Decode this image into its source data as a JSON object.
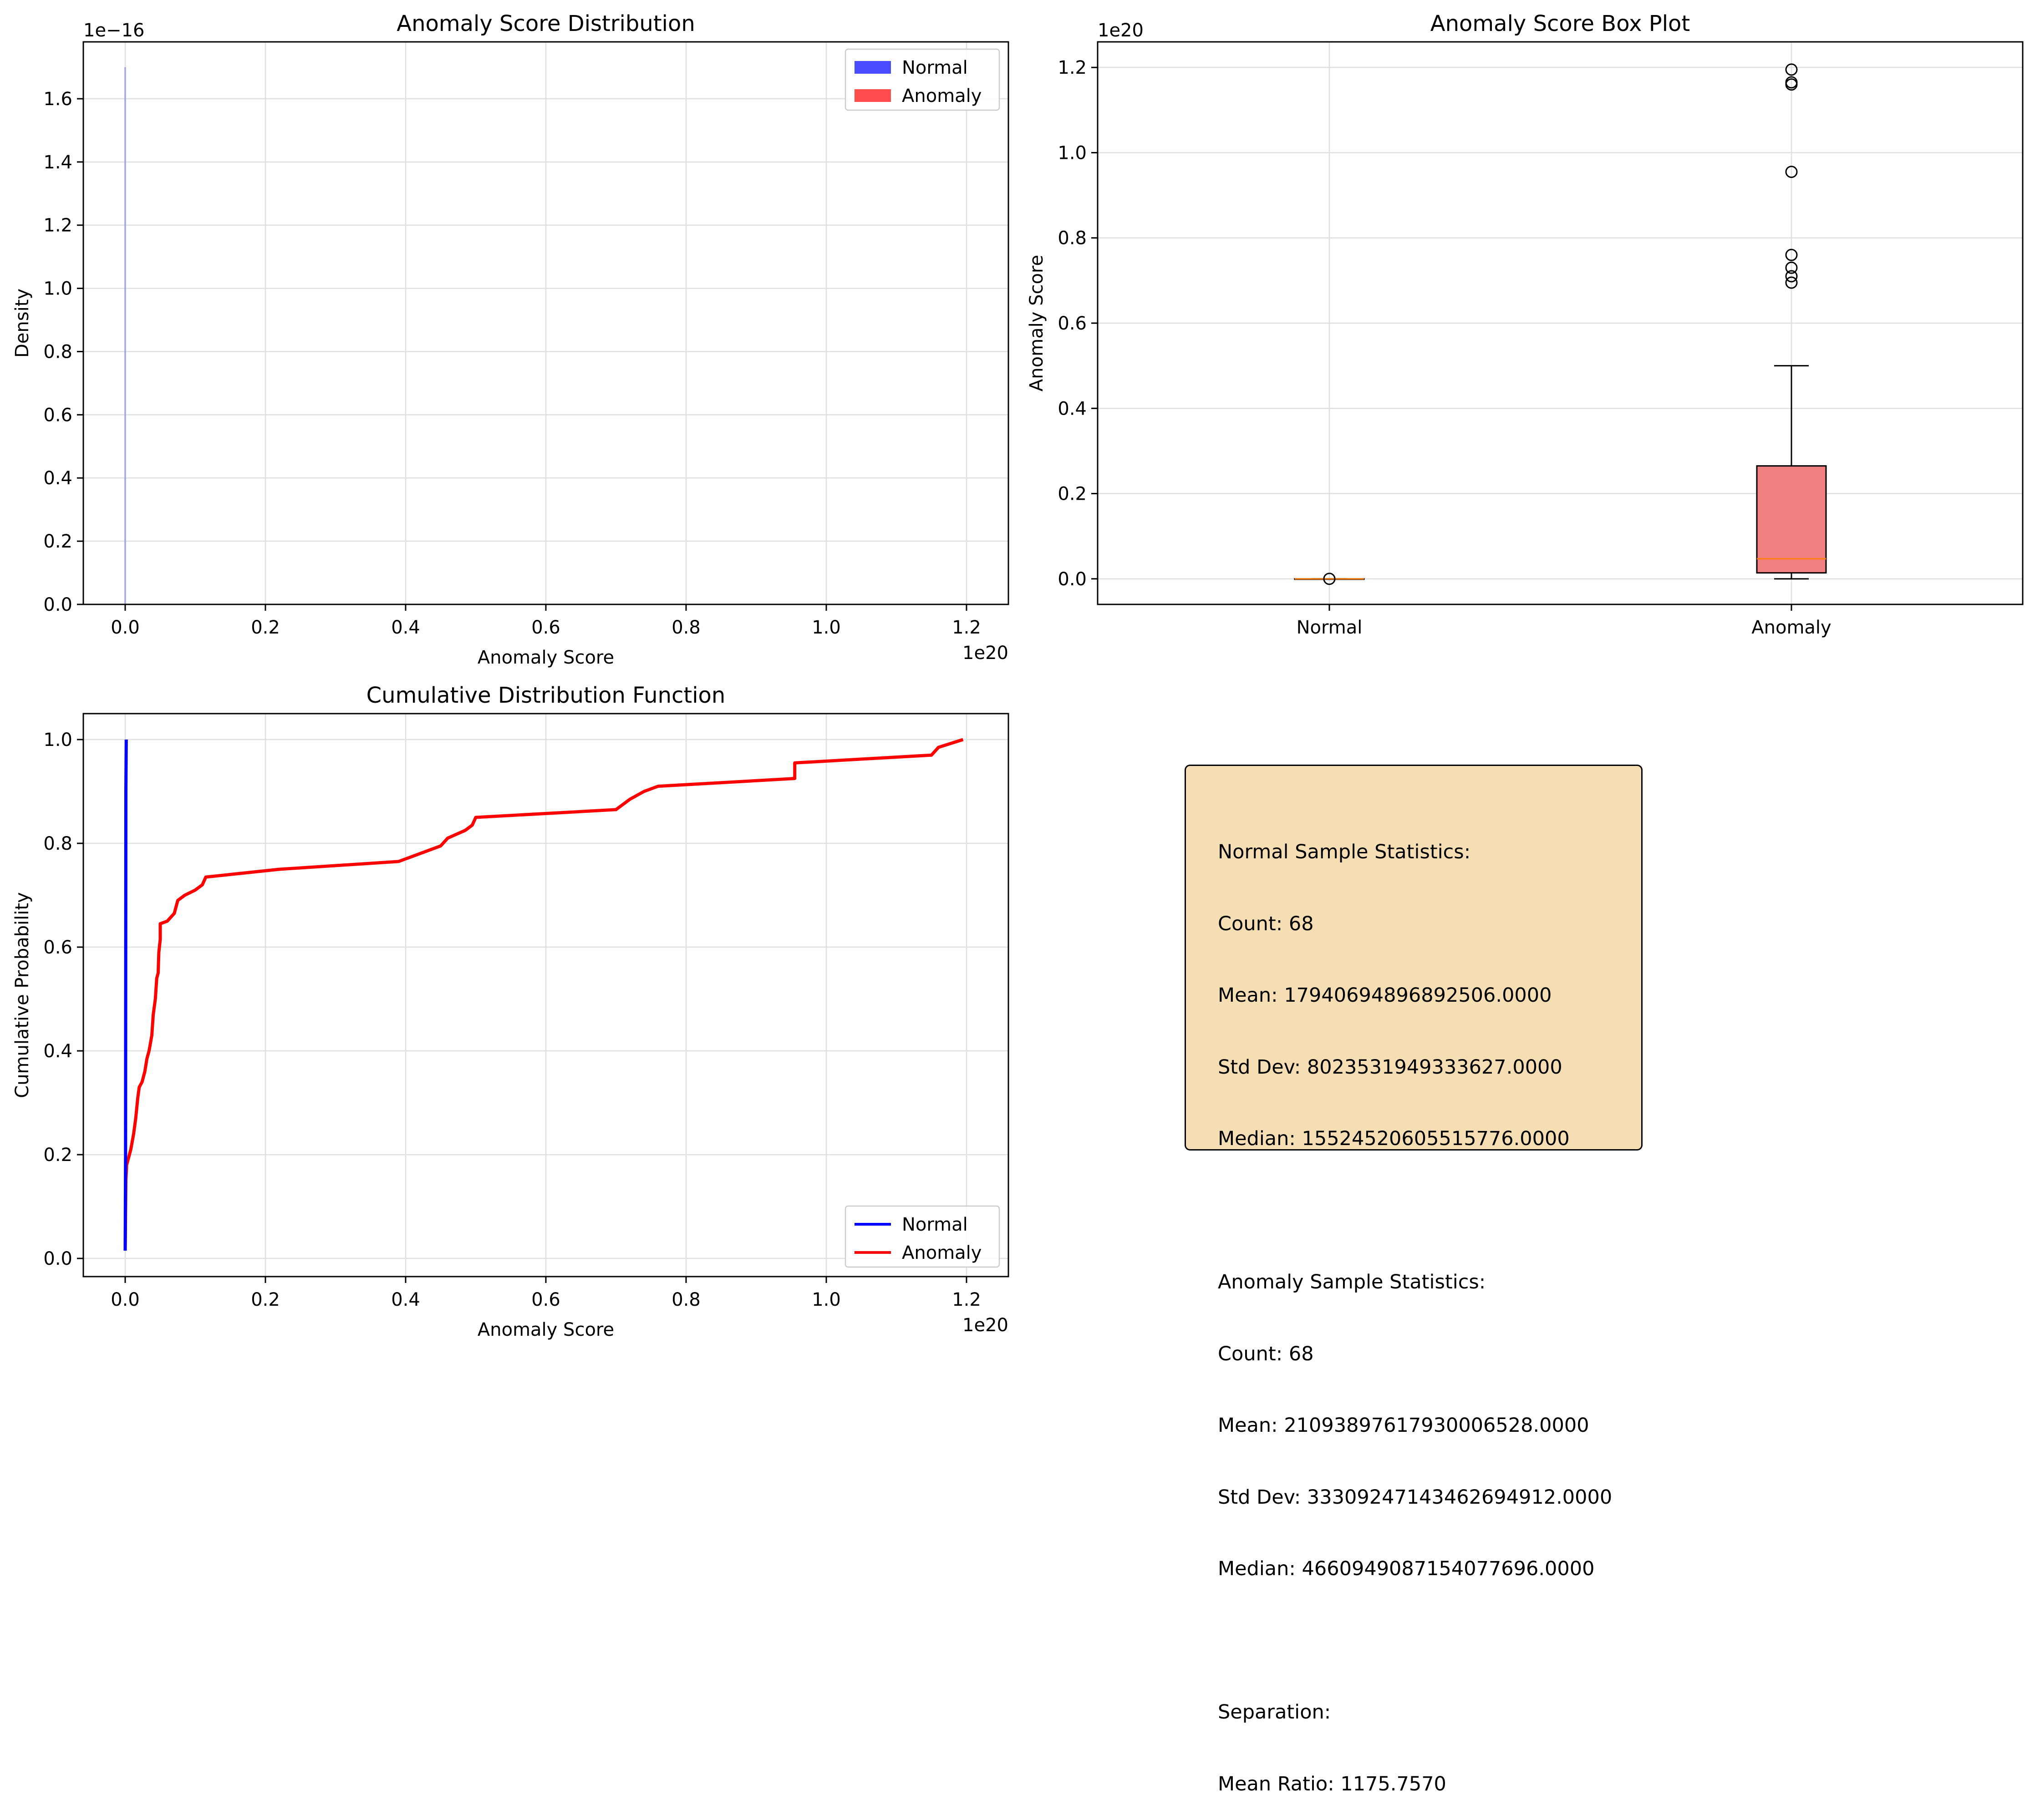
{
  "colors": {
    "normal": "#0000ff",
    "anomaly": "#ff0000",
    "box_fill": "#f08080",
    "median_line": "#ff7f0e",
    "stats_box_bg": "#f5deb3"
  },
  "chart_data": [
    {
      "type": "histogram",
      "title": "Anomaly Score Distribution",
      "xlabel": "Anomaly Score",
      "ylabel": "Density",
      "x_offset_text": "1e20",
      "y_offset_text": "1e−16",
      "xlim": [
        -0.06,
        1.26
      ],
      "ylim": [
        0,
        1.78
      ],
      "x_scale": "1e20",
      "y_scale": "1e-16",
      "xticks": [
        0.0,
        0.2,
        0.4,
        0.6,
        0.8,
        1.0,
        1.2
      ],
      "yticks": [
        0.0,
        0.2,
        0.4,
        0.6,
        0.8,
        1.0,
        1.2,
        1.4,
        1.6
      ],
      "grid": true,
      "legend": {
        "position": "top-right",
        "entries": [
          "Normal",
          "Anomaly"
        ]
      },
      "series": [
        {
          "name": "Normal",
          "note": "single narrow bar at x≈0",
          "bars": [
            {
              "x": 0.0,
              "density": 1.7
            }
          ]
        },
        {
          "name": "Anomaly",
          "bars": []
        }
      ]
    },
    {
      "type": "box",
      "title": "Anomaly Score Box Plot",
      "ylabel": "Anomaly Score",
      "y_offset_text": "1e20",
      "y_scale": "1e20",
      "ylim": [
        -0.06,
        1.26
      ],
      "yticks": [
        0.0,
        0.2,
        0.4,
        0.6,
        0.8,
        1.0,
        1.2
      ],
      "categories": [
        "Normal",
        "Anomaly"
      ],
      "grid": true,
      "boxes": [
        {
          "name": "Normal",
          "q1": 0.0,
          "median": 0.0,
          "q3": 0.0,
          "whisker_low": 0.0,
          "whisker_high": 0.0,
          "outliers": [
            0.0
          ]
        },
        {
          "name": "Anomaly",
          "q1": 0.014,
          "median": 0.047,
          "q3": 0.265,
          "whisker_low": 0.0,
          "whisker_high": 0.5,
          "outliers": [
            0.695,
            0.71,
            0.73,
            0.76,
            0.955,
            1.16,
            1.165,
            1.195
          ]
        }
      ]
    },
    {
      "type": "line",
      "title": "Cumulative Distribution Function",
      "xlabel": "Anomaly Score",
      "ylabel": "Cumulative Probability",
      "x_offset_text": "1e20",
      "x_scale": "1e20",
      "xlim": [
        -0.06,
        1.26
      ],
      "ylim": [
        -0.035,
        1.05
      ],
      "xticks": [
        0.0,
        0.2,
        0.4,
        0.6,
        0.8,
        1.0,
        1.2
      ],
      "yticks": [
        0.0,
        0.2,
        0.4,
        0.6,
        0.8,
        1.0
      ],
      "grid": true,
      "legend": {
        "position": "bottom-right",
        "entries": [
          "Normal",
          "Anomaly"
        ]
      },
      "series": [
        {
          "name": "Normal",
          "x": [
            0.0,
            0.0005,
            0.001,
            0.0015
          ],
          "y": [
            0.015,
            0.2,
            0.9,
            1.0
          ]
        },
        {
          "name": "Anomaly",
          "x": [
            0.0,
            0.0005,
            0.001,
            0.002,
            0.004,
            0.008,
            0.012,
            0.015,
            0.018,
            0.02,
            0.024,
            0.028,
            0.031,
            0.034,
            0.038,
            0.04,
            0.043,
            0.045,
            0.047,
            0.048,
            0.05,
            0.05,
            0.06,
            0.07,
            0.075,
            0.085,
            0.1,
            0.11,
            0.115,
            0.22,
            0.39,
            0.42,
            0.45,
            0.46,
            0.485,
            0.495,
            0.5,
            0.7,
            0.72,
            0.74,
            0.76,
            0.955,
            0.955,
            1.15,
            1.16,
            1.195
          ],
          "y": [
            0.015,
            0.09,
            0.15,
            0.18,
            0.19,
            0.21,
            0.24,
            0.27,
            0.31,
            0.33,
            0.34,
            0.36,
            0.385,
            0.4,
            0.43,
            0.47,
            0.5,
            0.54,
            0.55,
            0.59,
            0.615,
            0.645,
            0.65,
            0.665,
            0.69,
            0.7,
            0.71,
            0.72,
            0.735,
            0.75,
            0.765,
            0.78,
            0.795,
            0.81,
            0.825,
            0.835,
            0.85,
            0.865,
            0.885,
            0.9,
            0.91,
            0.925,
            0.955,
            0.97,
            0.985,
            1.0
          ]
        }
      ]
    }
  ],
  "stats_text": {
    "lines": [
      "Normal Sample Statistics:",
      "Count: 68",
      "Mean: 17940694896892506.0000",
      "Std Dev: 8023531949333627.0000",
      "Median: 15524520605515776.0000",
      "",
      "Anomaly Sample Statistics:",
      "Count: 68",
      "Mean: 21093897617930006528.0000",
      "Std Dev: 33309247143462694912.0000",
      "Median: 4660949087154077696.0000",
      "",
      "Separation:",
      "Mean Ratio: 1175.7570"
    ]
  }
}
